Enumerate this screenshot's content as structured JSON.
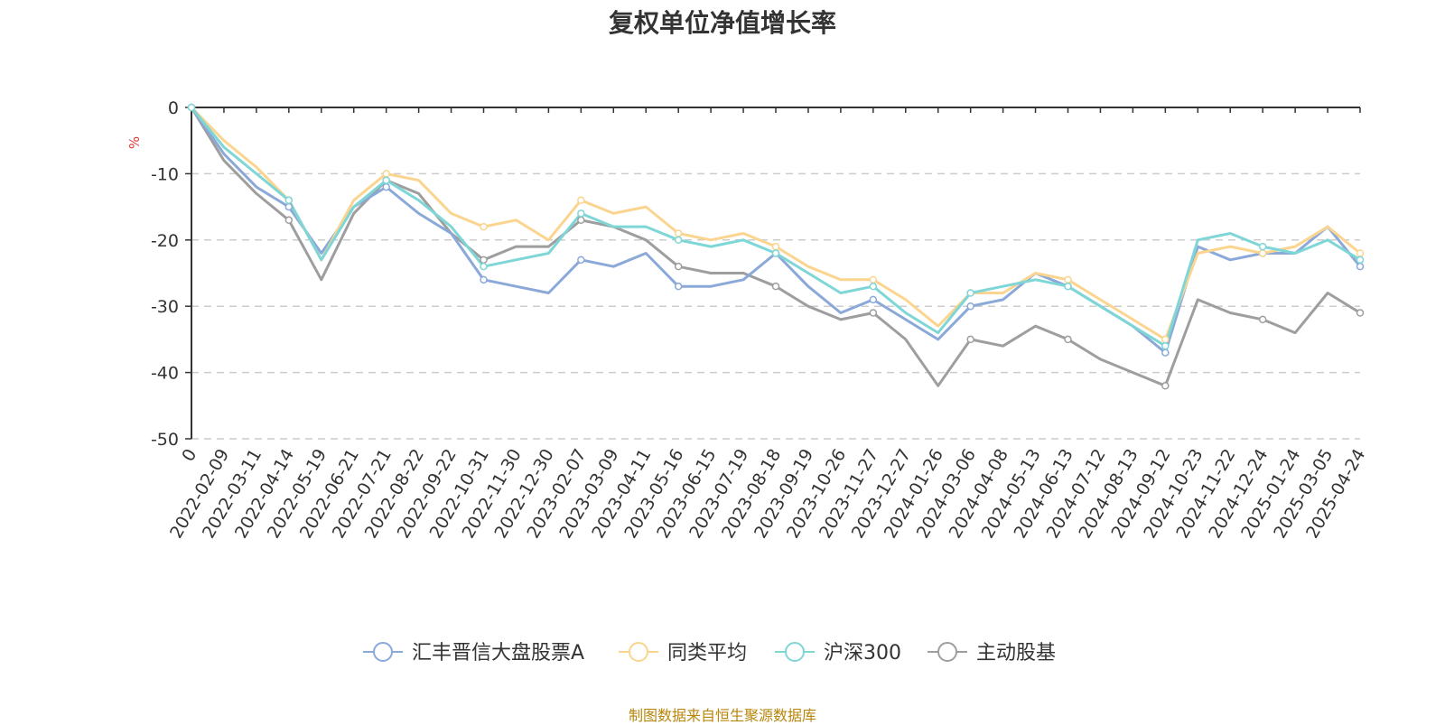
{
  "chart_data": {
    "type": "line",
    "title": "复权单位净值增长率",
    "ylabel": "%",
    "ylim": [
      -50,
      0
    ],
    "yticks": [
      0,
      -10,
      -20,
      -30,
      -40,
      -50
    ],
    "grid": true,
    "legend_position": "bottom",
    "source_note": "制图数据来自恒生聚源数据库",
    "categories": [
      "0",
      "2022-02-09",
      "2022-03-11",
      "2022-04-14",
      "2022-05-19",
      "2022-06-21",
      "2022-07-21",
      "2022-08-22",
      "2022-09-22",
      "2022-10-31",
      "2022-11-30",
      "2022-12-30",
      "2023-02-07",
      "2023-03-09",
      "2023-04-11",
      "2023-05-16",
      "2023-06-15",
      "2023-07-19",
      "2023-08-18",
      "2023-09-19",
      "2023-10-26",
      "2023-11-27",
      "2023-12-27",
      "2024-01-26",
      "2024-03-06",
      "2024-04-08",
      "2024-05-13",
      "2024-06-13",
      "2024-07-12",
      "2024-08-13",
      "2024-09-12",
      "2024-10-23",
      "2024-11-22",
      "2024-12-24",
      "2025-01-24",
      "2025-03-05",
      "2025-04-24"
    ],
    "series": [
      {
        "name": "汇丰晋信大盘股票A",
        "color": "#8aa9d9",
        "values": [
          0,
          -7,
          -12,
          -15,
          -22,
          -15,
          -12,
          -16,
          -19,
          -26,
          -27,
          -28,
          -23,
          -24,
          -22,
          -27,
          -27,
          -26,
          -22,
          -27,
          -31,
          -29,
          -32,
          -35,
          -30,
          -29,
          -25,
          -27,
          -30,
          -33,
          -37,
          -21,
          -23,
          -22,
          -22,
          -18,
          -24
        ]
      },
      {
        "name": "同类平均",
        "color": "#fbd58f",
        "values": [
          0,
          -5,
          -9,
          -14,
          -23,
          -14,
          -10,
          -11,
          -16,
          -18,
          -17,
          -20,
          -14,
          -16,
          -15,
          -19,
          -20,
          -19,
          -21,
          -24,
          -26,
          -26,
          -29,
          -33,
          -28,
          -28,
          -25,
          -26,
          -29,
          -32,
          -35,
          -22,
          -21,
          -22,
          -21,
          -18,
          -22
        ]
      },
      {
        "name": "沪深300",
        "color": "#7fd6d6",
        "values": [
          0,
          -6,
          -10,
          -14,
          -23,
          -15,
          -11,
          -14,
          -18,
          -24,
          -23,
          -22,
          -16,
          -18,
          -18,
          -20,
          -21,
          -20,
          -22,
          -25,
          -28,
          -27,
          -31,
          -34,
          -28,
          -27,
          -26,
          -27,
          -30,
          -33,
          -36,
          -20,
          -19,
          -21,
          -22,
          -20,
          -23
        ]
      },
      {
        "name": "主动股基",
        "color": "#9e9e9e",
        "values": [
          0,
          -8,
          -13,
          -17,
          -26,
          -16,
          -11,
          -13,
          -19,
          -23,
          -21,
          -21,
          -17,
          -18,
          -20,
          -24,
          -25,
          -25,
          -27,
          -30,
          -32,
          -31,
          -35,
          -42,
          -35,
          -36,
          -33,
          -35,
          -38,
          -40,
          -42,
          -29,
          -31,
          -32,
          -34,
          -28,
          -31
        ]
      }
    ]
  }
}
